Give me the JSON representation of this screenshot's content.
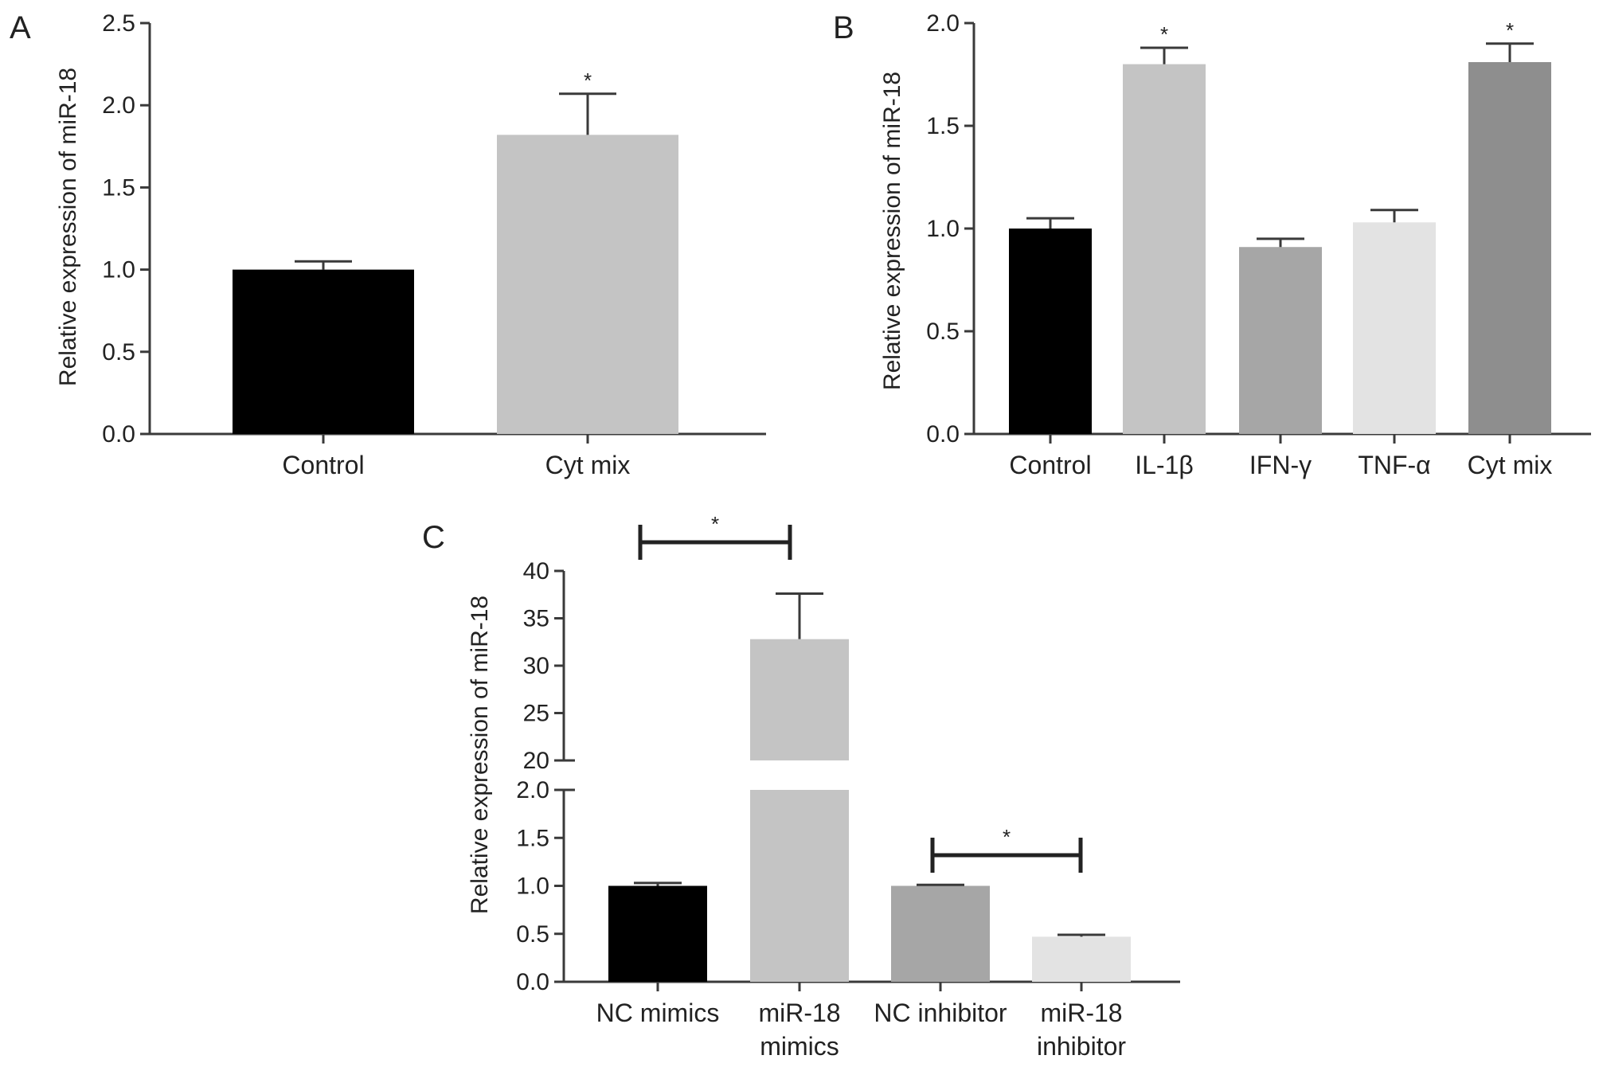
{
  "chart_data": [
    {
      "panel": "A",
      "type": "bar",
      "ylabel": "Relative expression of miR-18",
      "ylim": [
        0,
        2.5
      ],
      "yticks": [
        0.0,
        0.5,
        1.0,
        1.5,
        2.0,
        2.5
      ],
      "ytick_labels": [
        "0.0",
        "0.5",
        "1.0",
        "1.5",
        "2.0",
        "2.5"
      ],
      "categories": [
        "Control",
        "Cyt mix"
      ],
      "values": [
        1.0,
        1.82
      ],
      "errors": [
        0.05,
        0.25
      ],
      "colors": [
        "#000000",
        "#c4c4c4"
      ],
      "significance": [
        "",
        "*"
      ]
    },
    {
      "panel": "B",
      "type": "bar",
      "ylabel": "Relative expression of miR-18",
      "ylim": [
        0,
        2.0
      ],
      "yticks": [
        0.0,
        0.5,
        1.0,
        1.5,
        2.0
      ],
      "ytick_labels": [
        "0.0",
        "0.5",
        "1.0",
        "1.5",
        "2.0"
      ],
      "categories": [
        "Control",
        "IL-1β",
        "IFN-γ",
        "TNF-α",
        "Cyt mix"
      ],
      "values": [
        1.0,
        1.8,
        0.91,
        1.03,
        1.81
      ],
      "errors": [
        0.05,
        0.08,
        0.04,
        0.06,
        0.09
      ],
      "colors": [
        "#000000",
        "#c4c4c4",
        "#a6a6a6",
        "#e3e3e3",
        "#8e8e8e"
      ],
      "significance": [
        "",
        "*",
        "",
        "",
        "*"
      ]
    },
    {
      "panel": "C",
      "type": "bar",
      "ylabel": "Relative expression of miR-18",
      "axis_break": true,
      "ylim_lower": [
        0,
        2.0
      ],
      "ylim_upper": [
        20,
        40
      ],
      "yticks_lower": [
        0.0,
        0.5,
        1.0,
        1.5,
        2.0
      ],
      "ytick_labels_lower": [
        "0.0",
        "0.5",
        "1.0",
        "1.5",
        "2.0"
      ],
      "yticks_upper": [
        20,
        25,
        30,
        35,
        40
      ],
      "ytick_labels_upper": [
        "20",
        "25",
        "30",
        "35",
        "40"
      ],
      "categories": [
        "NC mimics",
        "miR-18 mimics",
        "NC inhibitor",
        "miR-18 inhibitor"
      ],
      "category_lines": [
        [
          "NC mimics"
        ],
        [
          "miR-18",
          "mimics"
        ],
        [
          "NC inhibitor"
        ],
        [
          "miR-18",
          "inhibitor"
        ]
      ],
      "values": [
        1.0,
        32.8,
        1.0,
        0.47
      ],
      "errors": [
        0.03,
        4.8,
        0.01,
        0.02
      ],
      "colors": [
        "#000000",
        "#c4c4c4",
        "#a6a6a6",
        "#e3e3e3"
      ],
      "comparisons": [
        {
          "from": 0,
          "to": 1,
          "label": "*"
        },
        {
          "from": 2,
          "to": 3,
          "label": "*"
        }
      ]
    }
  ]
}
